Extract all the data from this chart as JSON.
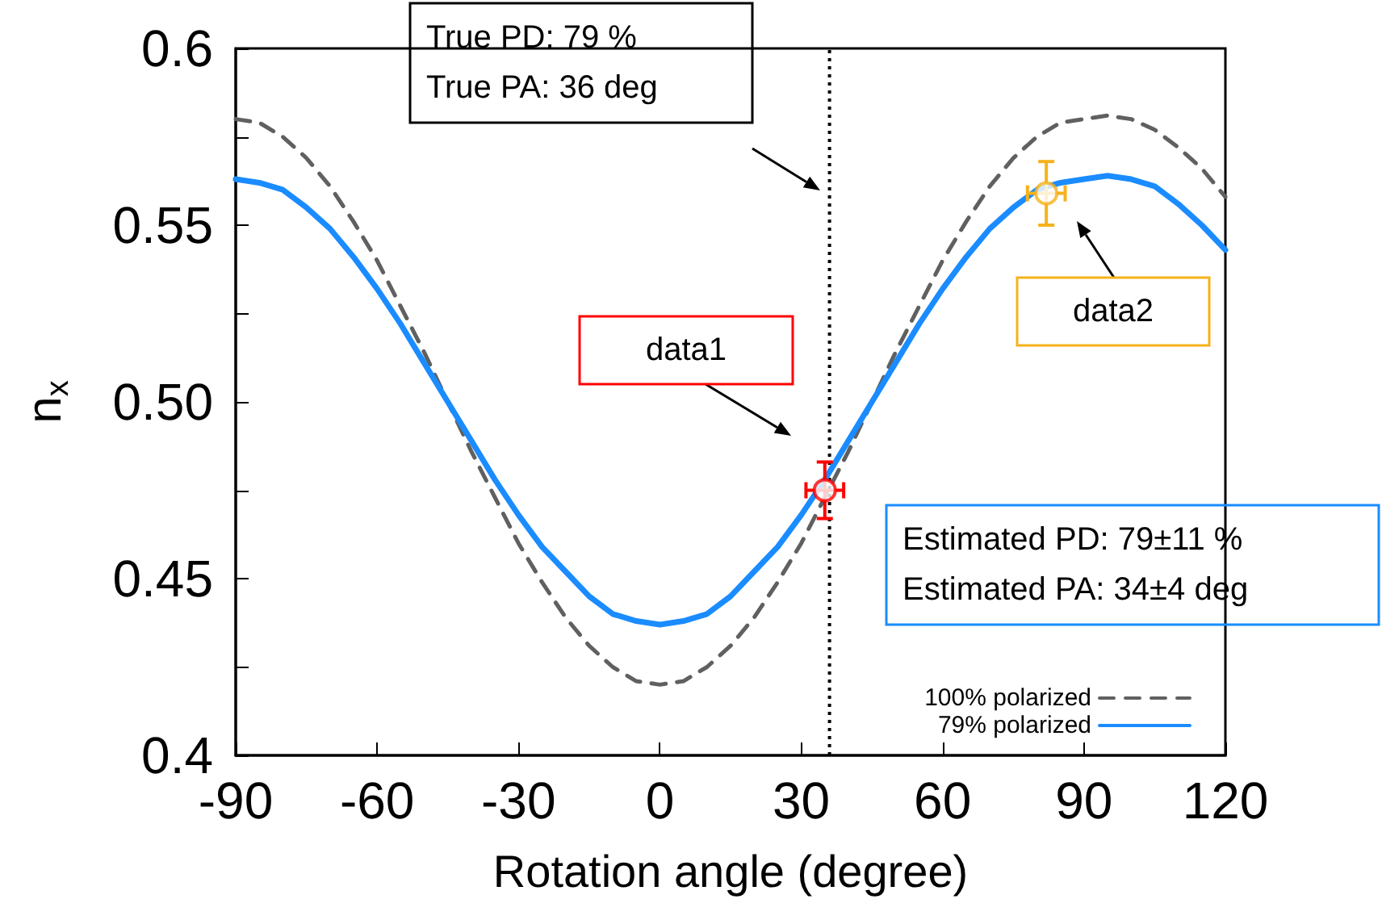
{
  "chart_data": {
    "type": "line",
    "xlabel": "Rotation angle (degree)",
    "ylabel": "n$_{x}$",
    "xlim": [
      -90,
      120
    ],
    "xticks": [
      -90,
      -60,
      -30,
      0,
      30,
      60,
      90,
      120
    ],
    "ylim": [
      0.4,
      0.6
    ],
    "yticks": [
      0.4,
      {
        "value": 0.425,
        "label": null
      },
      0.45,
      {
        "value": 0.475,
        "label": null
      },
      {
        "value": 0.5,
        "label": "0.50"
      },
      {
        "value": 0.525,
        "label": null
      },
      0.55,
      {
        "value": 0.575,
        "label": null
      },
      0.6
    ],
    "grid": false,
    "legend": "bottom right",
    "series": [
      {
        "name": "100% polarized",
        "type": "line",
        "color": "#606060",
        "line_style": "dashed",
        "marker": "none",
        "x": [
          -90,
          -85,
          -80,
          -75,
          -70,
          -65,
          -60,
          -55,
          -50,
          -45,
          -40,
          -35,
          -30,
          -25,
          -20,
          -15,
          -10,
          -5,
          0,
          5,
          10,
          15,
          20,
          25,
          30,
          35,
          40,
          45,
          50,
          55,
          60,
          65,
          70,
          75,
          80,
          85,
          90,
          95,
          100,
          105,
          110,
          115,
          120
        ],
        "values": [
          0.58,
          0.579,
          0.575,
          0.569,
          0.561,
          0.551,
          0.54,
          0.527,
          0.514,
          0.5,
          0.486,
          0.473,
          0.46,
          0.449,
          0.439,
          0.431,
          0.425,
          0.421,
          0.42,
          0.421,
          0.425,
          0.431,
          0.439,
          0.449,
          0.46,
          0.473,
          0.486,
          0.5,
          0.514,
          0.527,
          0.54,
          0.551,
          0.561,
          0.569,
          0.575,
          0.579,
          0.58,
          0.581,
          0.58,
          0.577,
          0.572,
          0.566,
          0.558
        ]
      },
      {
        "name": "79% polarized",
        "type": "line",
        "color": "#1a8cff",
        "line_style": "solid",
        "marker": "none",
        "x": [
          -90,
          -85,
          -80,
          -75,
          -70,
          -65,
          -60,
          -55,
          -50,
          -45,
          -40,
          -35,
          -30,
          -25,
          -20,
          -15,
          -10,
          -5,
          0,
          5,
          10,
          15,
          20,
          25,
          30,
          35,
          40,
          45,
          50,
          55,
          60,
          65,
          70,
          75,
          80,
          85,
          90,
          95,
          100,
          105,
          110,
          115,
          120
        ],
        "values": [
          0.563,
          0.562,
          0.56,
          0.555,
          0.549,
          0.541,
          0.532,
          0.522,
          0.511,
          0.5,
          0.489,
          0.478,
          0.468,
          0.459,
          0.452,
          0.445,
          0.44,
          0.438,
          0.437,
          0.438,
          0.44,
          0.445,
          0.452,
          0.459,
          0.468,
          0.478,
          0.489,
          0.5,
          0.511,
          0.522,
          0.532,
          0.541,
          0.549,
          0.555,
          0.56,
          0.562,
          0.563,
          0.564,
          0.563,
          0.561,
          0.556,
          0.55,
          0.543
        ]
      },
      {
        "type": "scatter",
        "color": "#ff0000",
        "marker": "circle",
        "x": [
          35
        ],
        "values": [
          0.475
        ],
        "errors": [
          0.008
        ],
        "xerrors": [
          4
        ]
      },
      {
        "type": "scatter",
        "color": "#f5b21b",
        "marker": "circle",
        "x": [
          82
        ],
        "values": [
          0.559
        ],
        "errors": [
          0.009
        ],
        "xerrors": [
          4
        ]
      }
    ],
    "ref_lines": [
      {
        "axis": "x",
        "value": 36,
        "color": "#000000",
        "line_style": "dotted"
      }
    ],
    "annotations": [
      "True PD: 79 %\nTrue PA: 36 deg",
      "data1",
      "data2",
      "Estimated PD: 79±11 %\nEstimated PA: 34±4 deg"
    ]
  }
}
